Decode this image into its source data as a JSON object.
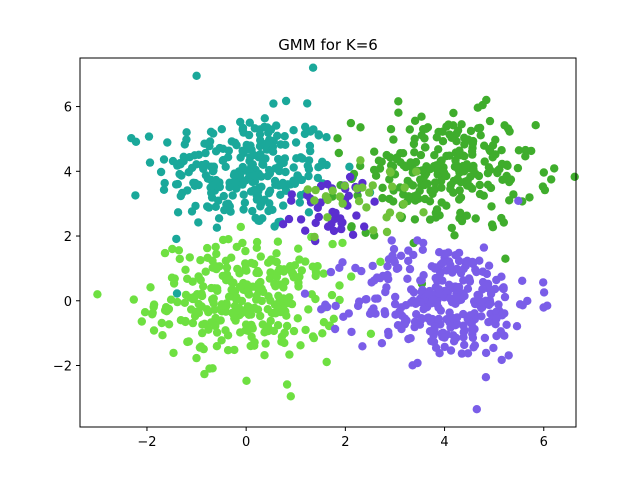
{
  "chart_data": {
    "type": "scatter",
    "title": "GMM for K=6",
    "xlabel": "",
    "ylabel": "",
    "xlim": [
      -3.35,
      6.65
    ],
    "ylim": [
      -3.9,
      7.5
    ],
    "xticks": [
      -2,
      0,
      2,
      4,
      6
    ],
    "xtick_labels": [
      "−2",
      "0",
      "2",
      "4",
      "6"
    ],
    "yticks": [
      -2,
      0,
      2,
      4,
      6
    ],
    "ytick_labels": [
      "−2",
      "0",
      "2",
      "4",
      "6"
    ],
    "grid": false,
    "legend": "none",
    "clusters": [
      {
        "center": [
          0.0,
          4.0
        ],
        "std": 0.9,
        "count": 260,
        "color": "#1aa89a"
      },
      {
        "center": [
          0.0,
          0.0
        ],
        "std": 0.9,
        "count": 300,
        "color": "#6ee041"
      },
      {
        "center": [
          4.0,
          4.0
        ],
        "std": 0.9,
        "count": 250,
        "color": "#3fad2c"
      },
      {
        "center": [
          4.0,
          0.0
        ],
        "std": 0.9,
        "count": 300,
        "color": "#7a5de8"
      },
      {
        "center": [
          1.7,
          2.9
        ],
        "std": 0.55,
        "count": 40,
        "color": "#5b2fcf"
      },
      {
        "center": [
          2.6,
          3.4
        ],
        "std": 0.6,
        "count": 30,
        "color": "#6fc23a"
      }
    ],
    "notable_points": [
      {
        "x": -1.0,
        "y": 6.95
      },
      {
        "x": 1.35,
        "y": 7.2
      },
      {
        "x": -3.0,
        "y": 0.2
      },
      {
        "x": 4.65,
        "y": -3.35
      },
      {
        "x": 6.15,
        "y": 3.75
      },
      {
        "x": 0.9,
        "y": -2.95
      }
    ]
  }
}
